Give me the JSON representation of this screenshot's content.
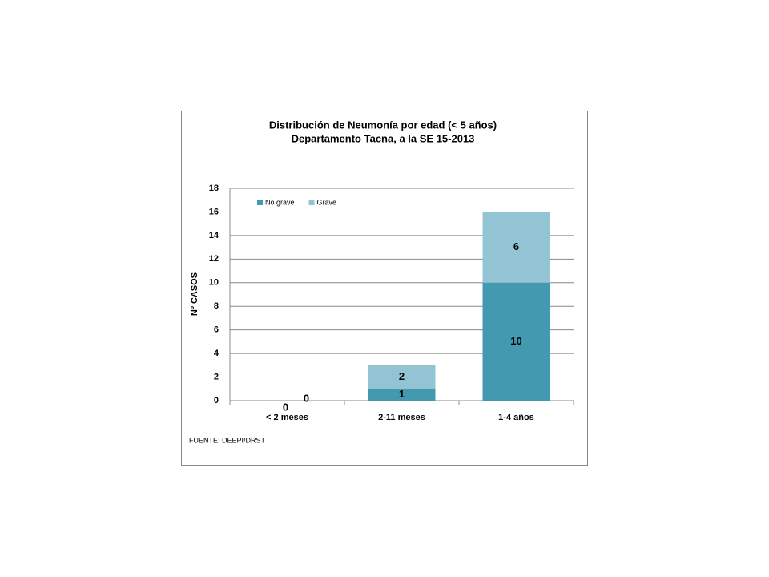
{
  "chart_data": {
    "type": "stacked_bar",
    "title": "Distribución  de Neumonía por edad (< 5 años)",
    "subtitle": "Departamento Tacna, a la SE  15-2013",
    "y_label": "Nº CASOS",
    "note": "FUENTE: DEEPI/DRST",
    "categories": [
      "< 2 meses",
      "2-11 meses",
      "1-4 años"
    ],
    "series": [
      {
        "name": "No grave",
        "color": "#4399b0",
        "values": [
          0,
          1,
          10
        ]
      },
      {
        "name": "Grave",
        "color": "#93c4d4",
        "values": [
          0,
          2,
          6
        ]
      }
    ],
    "ylim": [
      0,
      18
    ],
    "yticks": [
      0,
      2,
      4,
      6,
      8,
      10,
      12,
      14,
      16,
      18
    ],
    "grid": true,
    "legend": "top-left"
  }
}
